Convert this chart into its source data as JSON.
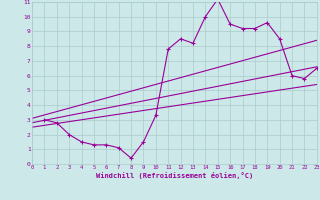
{
  "bg_color": "#cce8e8",
  "grid_color": "#aacccc",
  "line_color": "#990099",
  "marker_color": "#990099",
  "xlabel": "Windchill (Refroidissement éolien,°C)",
  "xlim": [
    0,
    23
  ],
  "ylim": [
    0,
    11
  ],
  "xticks": [
    0,
    1,
    2,
    3,
    4,
    5,
    6,
    7,
    8,
    9,
    10,
    11,
    12,
    13,
    14,
    15,
    16,
    17,
    18,
    19,
    20,
    21,
    22,
    23
  ],
  "yticks": [
    0,
    1,
    2,
    3,
    4,
    5,
    6,
    7,
    8,
    9,
    10,
    11
  ],
  "main_series_x": [
    1,
    2,
    3,
    4,
    5,
    6,
    7,
    8,
    9,
    10,
    11,
    12,
    13,
    14,
    15,
    16,
    17,
    18,
    19,
    20,
    21,
    22,
    23
  ],
  "main_series_y": [
    3.0,
    2.8,
    2.0,
    1.5,
    1.3,
    1.3,
    1.1,
    0.4,
    1.5,
    3.3,
    7.8,
    8.5,
    8.2,
    10.0,
    11.2,
    9.5,
    9.2,
    9.2,
    9.6,
    8.5,
    6.0,
    5.8,
    6.5
  ],
  "line1_x": [
    0,
    23
  ],
  "line1_y": [
    2.8,
    6.6
  ],
  "line2_x": [
    0,
    23
  ],
  "line2_y": [
    3.1,
    8.4
  ],
  "line3_x": [
    0,
    23
  ],
  "line3_y": [
    2.5,
    5.4
  ]
}
